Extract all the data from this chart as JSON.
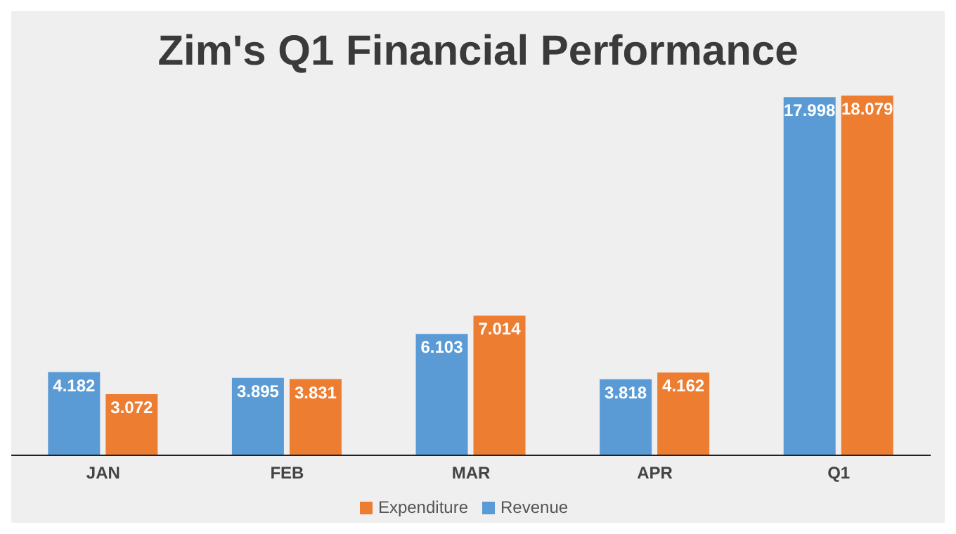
{
  "chart_data": {
    "type": "bar",
    "title": "Zim's Q1 Financial Performance",
    "categories": [
      "JAN",
      "FEB",
      "MAR",
      "APR",
      "Q1"
    ],
    "series": [
      {
        "name": "Revenue",
        "color": "#5b9bd5",
        "values": [
          4.182,
          3.895,
          6.103,
          3.818,
          17.998
        ]
      },
      {
        "name": "Expenditure",
        "color": "#ed7d31",
        "values": [
          3.072,
          3.831,
          7.014,
          4.162,
          18.079
        ]
      }
    ],
    "legend": "bottom",
    "data_labels": true
  }
}
